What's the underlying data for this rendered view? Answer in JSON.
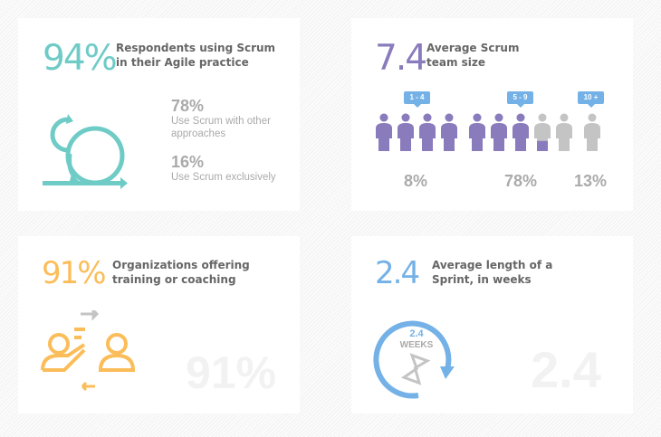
{
  "colors": {
    "teal": "#6ecbc6",
    "purple": "#8a7bbd",
    "orange": "#fbbd59",
    "blue": "#74b1e6",
    "gray": "#c4c4c4"
  },
  "scrum_usage": {
    "stat": "94%",
    "title_line1": "Respondents using Scrum",
    "title_line2": "in their Agile practice",
    "icon": "scrum-cycle-icon",
    "items": [
      {
        "value": "78%",
        "label_line1": "Use Scrum with other",
        "label_line2": "approaches"
      },
      {
        "value": "16%",
        "label": "Use Scrum exclusively"
      }
    ]
  },
  "team_size": {
    "stat": "7.4",
    "title_line1": "Average Scrum",
    "title_line2": "team size",
    "icon": "person-icon",
    "filled_people": 7.4,
    "total_people": 10,
    "groups": [
      {
        "range": "1 - 4",
        "percent": "8%"
      },
      {
        "range": "5 - 9",
        "percent": "78%"
      },
      {
        "range": "10 +",
        "percent": "13%"
      }
    ]
  },
  "training": {
    "stat": "91%",
    "title_line1": "Organizations offering",
    "title_line2": "training or coaching",
    "icon": "coaching-icon",
    "watermark": "91%"
  },
  "sprint": {
    "stat": "2.4",
    "title_line1": "Average length of a",
    "title_line2": "Sprint, in weeks",
    "icon": "hourglass-cycle-icon",
    "circle_value": "2.4",
    "circle_unit": "WEEKS",
    "watermark": "2.4"
  }
}
